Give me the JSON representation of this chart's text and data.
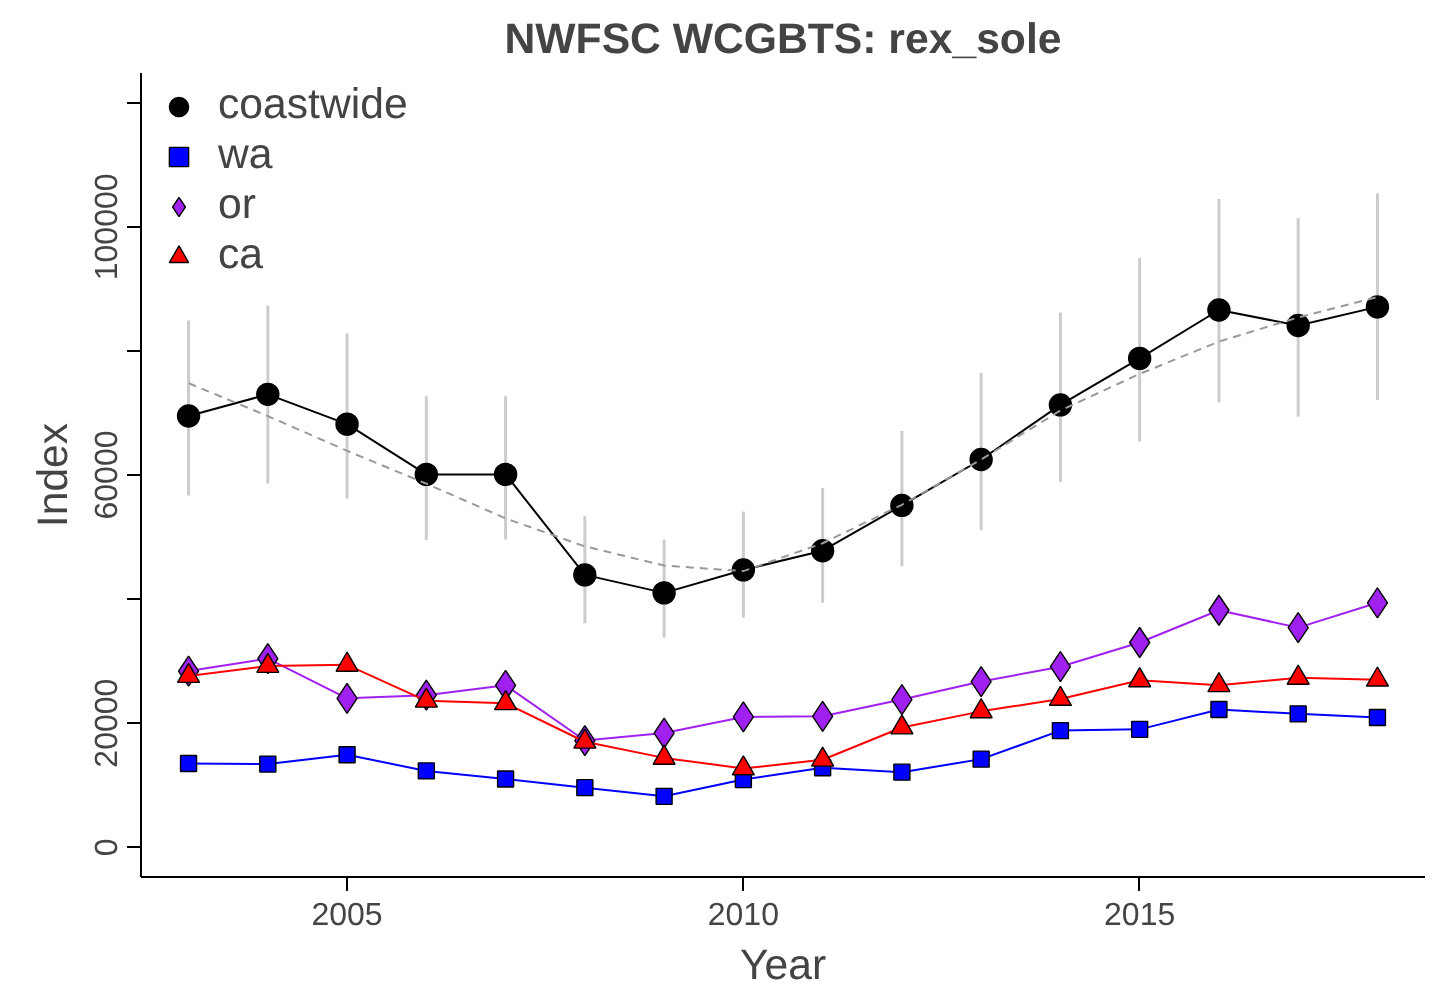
{
  "chart_data": {
    "type": "line",
    "title": "NWFSC WCGBTS: rex_sole",
    "xlabel": "Year",
    "ylabel": "Index",
    "x": [
      2003,
      2004,
      2005,
      2006,
      2007,
      2008,
      2009,
      2010,
      2011,
      2012,
      2013,
      2014,
      2015,
      2016,
      2017,
      2018
    ],
    "series": [
      {
        "name": "coastwide",
        "color": "#000000",
        "marker": "circle",
        "values": [
          69500,
          73000,
          68200,
          60100,
          60100,
          43900,
          41000,
          44700,
          47800,
          55100,
          62500,
          71300,
          78800,
          86600,
          84100,
          87100
        ],
        "errors": [
          [
            56700,
            84900
          ],
          [
            58600,
            87300
          ],
          [
            56200,
            82800
          ],
          [
            49500,
            72700
          ],
          [
            49600,
            72700
          ],
          [
            36100,
            53400
          ],
          [
            33800,
            49600
          ],
          [
            37000,
            54100
          ],
          [
            39400,
            57900
          ],
          [
            45300,
            67100
          ],
          [
            51100,
            76500
          ],
          [
            58900,
            86200
          ],
          [
            65400,
            95000
          ],
          [
            71700,
            104500
          ],
          [
            69400,
            101400
          ],
          [
            72100,
            105400
          ]
        ]
      },
      {
        "name": "wa",
        "color": "#0000ff",
        "marker": "square",
        "values": [
          13500,
          13400,
          14900,
          12300,
          11000,
          9600,
          8200,
          10900,
          12800,
          12100,
          14200,
          18800,
          19000,
          22200,
          21500,
          20900
        ]
      },
      {
        "name": "or",
        "color": "#a020f0",
        "marker": "diamond",
        "values": [
          28400,
          30400,
          24000,
          24500,
          26100,
          17200,
          18400,
          21000,
          21100,
          23800,
          26700,
          29100,
          33000,
          38200,
          35400,
          39400
        ]
      },
      {
        "name": "ca",
        "color": "#ff0000",
        "marker": "triangle",
        "values": [
          27600,
          29200,
          29400,
          23600,
          23200,
          17000,
          14400,
          12700,
          14100,
          19300,
          21900,
          23900,
          26900,
          26100,
          27300,
          27000
        ]
      },
      {
        "color": "#999999",
        "marker": "none",
        "line_style": "dashed",
        "values": [
          74800,
          69500,
          63900,
          58600,
          53000,
          48500,
          45400,
          44500,
          49000,
          55200,
          62500,
          70400,
          76300,
          81500,
          85400,
          88700
        ]
      }
    ],
    "xlim": [
      2002.4,
      2018.6
    ],
    "ylim": [
      -4800,
      124800
    ],
    "xticks": [
      2005,
      2010,
      2015
    ],
    "yticks": [
      0,
      20000,
      {
        "value": 40000,
        "label": null
      },
      60000,
      {
        "value": 80000,
        "label": null
      },
      100000,
      {
        "value": 120000,
        "label": null
      }
    ],
    "legend": "top left",
    "grid": false
  }
}
